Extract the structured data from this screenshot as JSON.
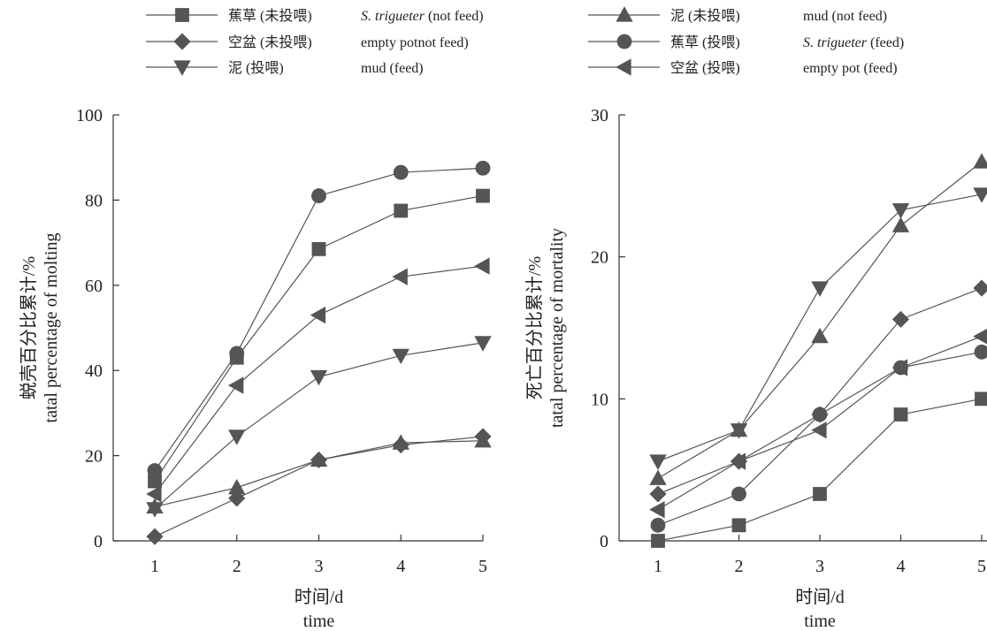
{
  "legend": [
    {
      "zh": "蕉草 (未投喂)",
      "en_italic": "S. trigueter",
      "en_rest": " (not feed)",
      "marker": "square"
    },
    {
      "zh": "空盆 (未投喂)",
      "en_italic": "",
      "en_rest": "empty potnot feed)",
      "marker": "diamond"
    },
    {
      "zh": "泥 (投喂)",
      "en_italic": "",
      "en_rest": "mud (feed)",
      "marker": "triangle-down"
    },
    {
      "zh": "泥 (未投喂)",
      "en_italic": "",
      "en_rest": "mud (not feed)",
      "marker": "triangle-up"
    },
    {
      "zh": "蕉草 (投喂)",
      "en_italic": "S. trigueter",
      "en_rest": " (feed)",
      "marker": "circle"
    },
    {
      "zh": "空盆 (投喂)",
      "en_italic": "",
      "en_rest": "empty pot (feed)",
      "marker": "triangle-left"
    }
  ],
  "chart_data": [
    {
      "type": "line",
      "title": "",
      "ylabel_zh": "蜕壳百分比累计/%",
      "ylabel_en": "tatal percentage of molting",
      "xlabel_zh": "时间/d",
      "xlabel_en": "time",
      "x": [
        1,
        2,
        3,
        4,
        5
      ],
      "xticks": [
        "1",
        "2",
        "3",
        "4",
        "5"
      ],
      "ylim": [
        0,
        100
      ],
      "yticks": [
        "0",
        "20",
        "40",
        "60",
        "80",
        "100"
      ],
      "series": [
        {
          "name": "蕉草 (未投喂) S. trigueter (not feed)",
          "marker": "square",
          "values": [
            14,
            43,
            68.5,
            77.5,
            81
          ]
        },
        {
          "name": "空盆 (未投喂) empty potnot feed)",
          "marker": "diamond",
          "values": [
            1,
            10,
            19,
            22.5,
            24.5
          ]
        },
        {
          "name": "泥 (投喂) mud (feed)",
          "marker": "triangle-down",
          "values": [
            7.5,
            24.5,
            38.5,
            43.5,
            46.5
          ]
        },
        {
          "name": "泥 (未投喂) mud (not feed)",
          "marker": "triangle-up",
          "values": [
            8,
            12.5,
            19,
            23,
            23.5
          ]
        },
        {
          "name": "蕉草 (投喂) S. trigueter (feed)",
          "marker": "circle",
          "values": [
            16.5,
            44,
            81,
            86.5,
            87.5
          ]
        },
        {
          "name": "空盆 (投喂) empty pot (feed)",
          "marker": "triangle-left",
          "values": [
            11,
            36.5,
            53,
            62,
            64.5
          ]
        }
      ]
    },
    {
      "type": "line",
      "title": "",
      "ylabel_zh": "死亡百分比累计/%",
      "ylabel_en": "tatal percentage of mortality",
      "xlabel_zh": "时间/d",
      "xlabel_en": "time",
      "x": [
        1,
        2,
        3,
        4,
        5
      ],
      "xticks": [
        "1",
        "2",
        "3",
        "4",
        "5"
      ],
      "ylim": [
        0,
        30
      ],
      "yticks": [
        "0",
        "10",
        "20",
        "30"
      ],
      "series": [
        {
          "name": "蕉草 (未投喂) S. trigueter (not feed)",
          "marker": "square",
          "values": [
            0,
            1.1,
            3.3,
            8.9,
            10
          ]
        },
        {
          "name": "空盆 (未投喂) empty potnot feed)",
          "marker": "diamond",
          "values": [
            3.3,
            5.6,
            8.9,
            15.6,
            17.8
          ]
        },
        {
          "name": "泥 (投喂) mud (feed)",
          "marker": "triangle-down",
          "values": [
            5.6,
            7.8,
            17.8,
            23.3,
            24.4
          ]
        },
        {
          "name": "泥 (未投喂) mud (not feed)",
          "marker": "triangle-up",
          "values": [
            4.4,
            7.8,
            14.4,
            22.2,
            26.7
          ]
        },
        {
          "name": "蕉草 (投喂) S. trigueter (feed)",
          "marker": "circle",
          "values": [
            1.1,
            3.3,
            8.9,
            12.2,
            13.3
          ]
        },
        {
          "name": "空盆 (投喂) empty pot (feed)",
          "marker": "triangle-left",
          "values": [
            2.2,
            5.6,
            7.8,
            12.2,
            14.4
          ]
        }
      ]
    }
  ]
}
